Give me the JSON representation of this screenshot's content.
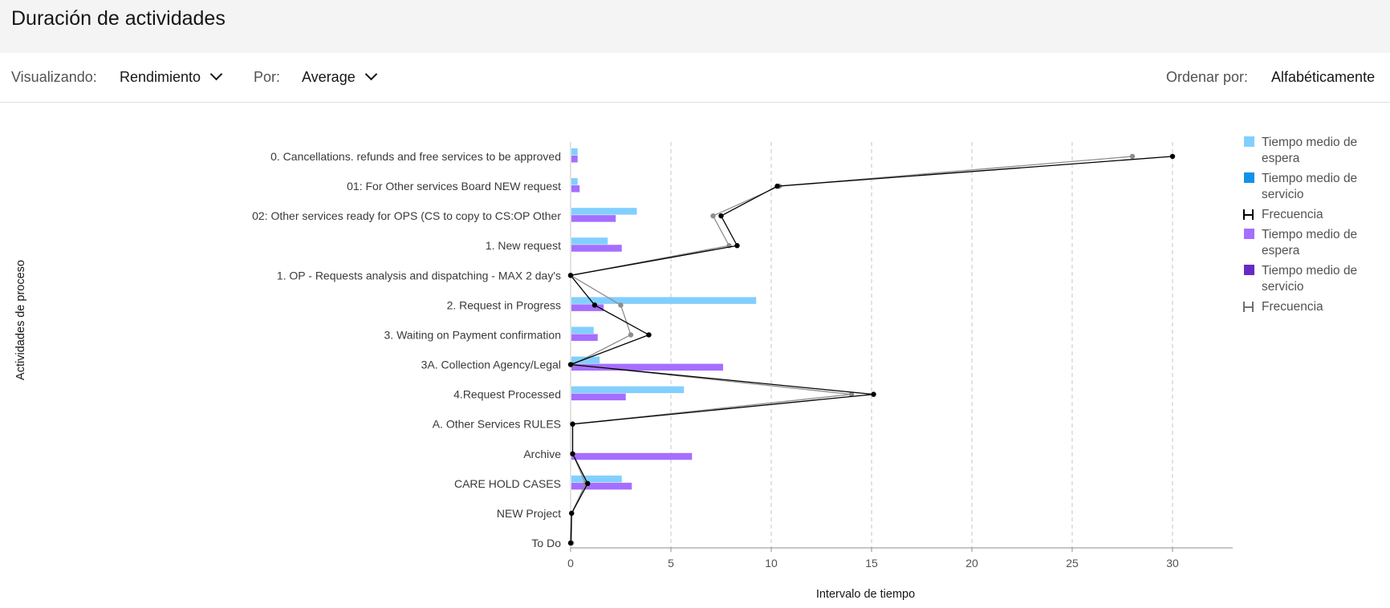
{
  "title": "Duración de actividades",
  "toolbar": {
    "viewing_label": "Visualizando:",
    "viewing_value": "Rendimiento",
    "by_label": "Por:",
    "by_value": "Average",
    "sort_label": "Ordenar por:",
    "sort_value": "Alfabéticamente"
  },
  "legend": [
    {
      "label": "Tiempo medio de espera",
      "kind": "rect",
      "color": "#82cfff"
    },
    {
      "label": "Tiempo medio de servicio",
      "kind": "rect",
      "color": "#1192e8"
    },
    {
      "label": "Frecuencia",
      "kind": "bracket",
      "color": "#000000"
    },
    {
      "label": "Tiempo medio de espera",
      "kind": "rect",
      "color": "#a56eff"
    },
    {
      "label": "Tiempo medio de servicio",
      "kind": "rect",
      "color": "#6929c4"
    },
    {
      "label": "Frecuencia",
      "kind": "bracket",
      "color": "#6f6f6f"
    }
  ],
  "chart_data": {
    "type": "bar",
    "orientation": "horizontal",
    "xlabel": "Intervalo de tiempo",
    "ylabel": "Actividades de proceso",
    "xlim": [
      0,
      33
    ],
    "xticks": [
      0,
      5,
      10,
      15,
      20,
      25,
      30
    ],
    "grid": "vertical-dashed",
    "legend_position": "right",
    "categories": [
      "0. Cancellations. refunds and free services to be approved",
      "01: For Other services Board NEW request",
      "02: Other services ready for OPS (CS to copy to CS:OP Other",
      "1. New request",
      "1. OP - Requests analysis and dispatching - MAX 2 day's",
      "2. Request in Progress",
      "3. Waiting on Payment confirmation",
      "3A. Collection Agency/Legal",
      "4.Request Processed",
      "A. Other Services RULES",
      "Archive",
      "CARE HOLD CASES",
      "NEW Project",
      "To Do"
    ],
    "series": [
      {
        "name": "Tiempo medio de espera",
        "type": "bar",
        "color": "#82cfff",
        "values": [
          0.35,
          0.35,
          3.3,
          1.85,
          0,
          9.25,
          1.15,
          1.45,
          5.65,
          0,
          0,
          2.55,
          0,
          0
        ]
      },
      {
        "name": "Tiempo medio de espera",
        "type": "bar",
        "color": "#a56eff",
        "values": [
          0.35,
          0.45,
          2.25,
          2.55,
          0,
          1.65,
          1.35,
          7.6,
          2.75,
          0,
          6.05,
          3.05,
          0,
          0
        ]
      },
      {
        "name": "Frecuencia",
        "type": "line",
        "color": "#000000",
        "values": [
          30,
          10.3,
          7.5,
          8.3,
          0,
          1.2,
          3.9,
          0,
          15.1,
          0.1,
          0.1,
          0.85,
          0.05,
          0
        ]
      },
      {
        "name": "Frecuencia",
        "type": "line",
        "color": "#8d8d8d",
        "values": [
          28,
          10.4,
          7.1,
          7.9,
          0,
          2.5,
          3,
          0.1,
          14,
          0.1,
          0.1,
          0.75,
          0.05,
          0.05
        ]
      }
    ]
  }
}
